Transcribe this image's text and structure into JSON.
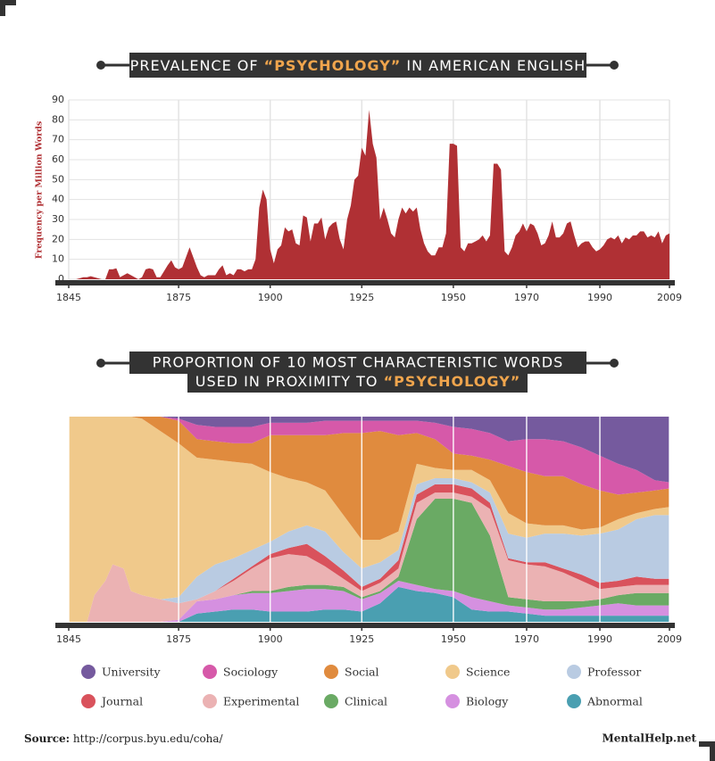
{
  "chart_data": [
    {
      "type": "area",
      "title": [
        "PREVALENCE OF",
        "“PSYCHOLOGY”",
        "IN AMERICAN ENGLISH"
      ],
      "y_label": "Frequency per Million Words",
      "color": "#b03034",
      "xlim": [
        1845,
        2009
      ],
      "ylim": [
        0,
        90
      ],
      "xticks": [
        1845,
        1875,
        1900,
        1925,
        1950,
        1970,
        1990,
        2009
      ],
      "yticks": [
        0,
        10,
        20,
        30,
        40,
        50,
        60,
        70,
        80,
        90
      ],
      "grid": true,
      "x": [
        1845,
        1846,
        1847,
        1848,
        1849,
        1850,
        1851,
        1852,
        1853,
        1854,
        1855,
        1856,
        1857,
        1858,
        1859,
        1860,
        1861,
        1862,
        1863,
        1864,
        1865,
        1866,
        1867,
        1868,
        1869,
        1870,
        1871,
        1872,
        1873,
        1874,
        1875,
        1876,
        1877,
        1878,
        1879,
        1880,
        1881,
        1882,
        1883,
        1884,
        1885,
        1886,
        1887,
        1888,
        1889,
        1890,
        1891,
        1892,
        1893,
        1894,
        1895,
        1896,
        1897,
        1898,
        1899,
        1900,
        1901,
        1902,
        1903,
        1904,
        1905,
        1906,
        1907,
        1908,
        1909,
        1910,
        1911,
        1912,
        1913,
        1914,
        1915,
        1916,
        1917,
        1918,
        1919,
        1920,
        1921,
        1922,
        1923,
        1924,
        1925,
        1926,
        1927,
        1928,
        1929,
        1930,
        1931,
        1932,
        1933,
        1934,
        1935,
        1936,
        1937,
        1938,
        1939,
        1940,
        1941,
        1942,
        1943,
        1944,
        1945,
        1946,
        1947,
        1948,
        1949,
        1950,
        1951,
        1952,
        1953,
        1954,
        1955,
        1956,
        1957,
        1958,
        1959,
        1960,
        1961,
        1962,
        1963,
        1964,
        1965,
        1966,
        1967,
        1968,
        1969,
        1970,
        1971,
        1972,
        1973,
        1974,
        1975,
        1976,
        1977,
        1978,
        1979,
        1980,
        1981,
        1982,
        1983,
        1984,
        1985,
        1986,
        1987,
        1988,
        1989,
        1990,
        1991,
        1992,
        1993,
        1994,
        1995,
        1996,
        1997,
        1998,
        1999,
        2000,
        2001,
        2002,
        2003,
        2004,
        2005,
        2006,
        2007,
        2008,
        2009
      ],
      "values": [
        0,
        0,
        0,
        0.5,
        1,
        1,
        1.5,
        1,
        0.5,
        0,
        0,
        5,
        5,
        5.5,
        1,
        2,
        3,
        2,
        1,
        0,
        1,
        5,
        5.5,
        5,
        1,
        1,
        4,
        7,
        9.5,
        6,
        5,
        6,
        11,
        16,
        11,
        6,
        2,
        1,
        2,
        2,
        2,
        5,
        7,
        2,
        3,
        2,
        5,
        5,
        4,
        5,
        5,
        10,
        36,
        45,
        40,
        15,
        8,
        15,
        17,
        26,
        24,
        25,
        18,
        17,
        32,
        31,
        19,
        28,
        28,
        31,
        20,
        26,
        28,
        29,
        20,
        15,
        30,
        37,
        50,
        52,
        66,
        62,
        85,
        68,
        61,
        30,
        36,
        30,
        23,
        21,
        30,
        36,
        33,
        36,
        34,
        36,
        25,
        18,
        14,
        12,
        12,
        16,
        16,
        23,
        68,
        68,
        67,
        16,
        14,
        18,
        18,
        19,
        20,
        22,
        19,
        22,
        58,
        58,
        55,
        14,
        12,
        16,
        22,
        24,
        28,
        24,
        28,
        27,
        23,
        17,
        18,
        22,
        29,
        21,
        21,
        23,
        28,
        29,
        22,
        16,
        18,
        19,
        19,
        16,
        14,
        15,
        17,
        20,
        21,
        20,
        22,
        18,
        21,
        20,
        22,
        22,
        24,
        24,
        21,
        22,
        21,
        24,
        18,
        22,
        23
      ]
    },
    {
      "type": "stacked_area",
      "title": [
        "PROPORTION OF 10 MOST CHARACTERISTIC WORDS",
        "USED IN PROXIMITY TO",
        "“PSYCHOLOGY”"
      ],
      "xlim": [
        1845,
        2009
      ],
      "ylim": [
        0,
        100
      ],
      "xticks": [
        1845,
        1875,
        1900,
        1925,
        1950,
        1970,
        1990,
        2009
      ],
      "grid": true,
      "x": [
        1845,
        1850,
        1852,
        1855,
        1857,
        1860,
        1862,
        1865,
        1870,
        1875,
        1880,
        1885,
        1890,
        1895,
        1900,
        1905,
        1910,
        1915,
        1920,
        1925,
        1930,
        1935,
        1940,
        1945,
        1950,
        1955,
        1960,
        1965,
        1970,
        1975,
        1980,
        1985,
        1990,
        1995,
        2000,
        2005,
        2009
      ],
      "series": [
        {
          "name": "University",
          "color": "#755a9e",
          "values": [
            0,
            0,
            0,
            0,
            0,
            0,
            0,
            0,
            0,
            1,
            4,
            5,
            5,
            5,
            3,
            3,
            3,
            2,
            2,
            2,
            2,
            2,
            2,
            3,
            5,
            6,
            8,
            12,
            11,
            11,
            12,
            15,
            19,
            23,
            26,
            31,
            32
          ]
        },
        {
          "name": "Sociology",
          "color": "#d659a9",
          "values": [
            0,
            0,
            0,
            0,
            0,
            0,
            0,
            0,
            0,
            1,
            7,
            7,
            8,
            8,
            6,
            6,
            6,
            7,
            6,
            6,
            5,
            7,
            6,
            8,
            13,
            13,
            13,
            12,
            16,
            18,
            17,
            18,
            17,
            15,
            11,
            5,
            3
          ]
        },
        {
          "name": "Social",
          "color": "#e08b3e",
          "values": [
            0,
            0,
            0,
            0,
            0,
            0,
            0,
            1,
            7,
            11,
            9,
            9,
            9,
            10,
            18,
            21,
            23,
            27,
            40,
            52,
            53,
            47,
            15,
            14,
            8,
            7,
            10,
            23,
            25,
            24,
            24,
            22,
            18,
            12,
            10,
            9,
            9
          ]
        },
        {
          "name": "Science",
          "color": "#f0c98b",
          "values": [
            100,
            100,
            87,
            80,
            72,
            74,
            85,
            86,
            82,
            75,
            58,
            51,
            47,
            42,
            34,
            26,
            21,
            20,
            18,
            14,
            11,
            9,
            10,
            5,
            4,
            6,
            6,
            10,
            7,
            4,
            4,
            3,
            3,
            5,
            3,
            3,
            4
          ]
        },
        {
          "name": "Professor",
          "color": "#b9cbe2",
          "values": [
            0,
            0,
            0,
            0,
            0,
            0,
            0,
            0,
            0,
            3,
            11,
            13,
            10,
            8,
            6,
            8,
            9,
            12,
            9,
            9,
            8,
            5,
            5,
            3,
            3,
            3,
            5,
            12,
            12,
            14,
            17,
            19,
            24,
            25,
            28,
            31,
            31
          ]
        },
        {
          "name": "Journal",
          "color": "#d9525c",
          "values": [
            0,
            0,
            0,
            0,
            0,
            0,
            0,
            0,
            0,
            0,
            0,
            0,
            1,
            1,
            2,
            3,
            6,
            5,
            4,
            2,
            2,
            4,
            4,
            4,
            4,
            4,
            3,
            1,
            1,
            2,
            2,
            3,
            3,
            3,
            4,
            3,
            3
          ]
        },
        {
          "name": "Experimental",
          "color": "#ebb2b3",
          "values": [
            0,
            0,
            13,
            20,
            28,
            26,
            15,
            13,
            11,
            8,
            1,
            4,
            7,
            11,
            16,
            16,
            14,
            9,
            4,
            3,
            4,
            4,
            8,
            3,
            3,
            3,
            13,
            18,
            17,
            17,
            14,
            10,
            5,
            4,
            4,
            4,
            4
          ]
        },
        {
          "name": "Clinical",
          "color": "#6aaa64",
          "values": [
            0,
            0,
            0,
            0,
            0,
            0,
            0,
            0,
            0,
            0,
            0,
            0,
            0,
            1,
            1,
            2,
            2,
            2,
            2,
            1,
            1,
            2,
            32,
            44,
            45,
            46,
            32,
            4,
            4,
            4,
            4,
            3,
            3,
            4,
            6,
            6,
            6
          ]
        },
        {
          "name": "Biology",
          "color": "#d590e0",
          "values": [
            0,
            0,
            0,
            0,
            0,
            0,
            0,
            0,
            0,
            1,
            6,
            6,
            7,
            8,
            9,
            10,
            11,
            10,
            9,
            6,
            5,
            3,
            3,
            2,
            3,
            6,
            5,
            3,
            3,
            3,
            3,
            4,
            5,
            6,
            5,
            5,
            5
          ]
        },
        {
          "name": "Abnormal",
          "color": "#4a9fb1",
          "values": [
            0,
            0,
            0,
            0,
            0,
            0,
            0,
            0,
            0,
            0,
            4,
            5,
            6,
            6,
            5,
            5,
            5,
            6,
            6,
            5,
            9,
            17,
            15,
            14,
            12,
            6,
            5,
            5,
            4,
            3,
            3,
            3,
            3,
            3,
            3,
            3,
            3
          ]
        }
      ]
    }
  ],
  "footer": {
    "source_label": "Source:",
    "source": "http://corpus.byu.edu/coha/",
    "brand": "MentalHelp.net"
  }
}
